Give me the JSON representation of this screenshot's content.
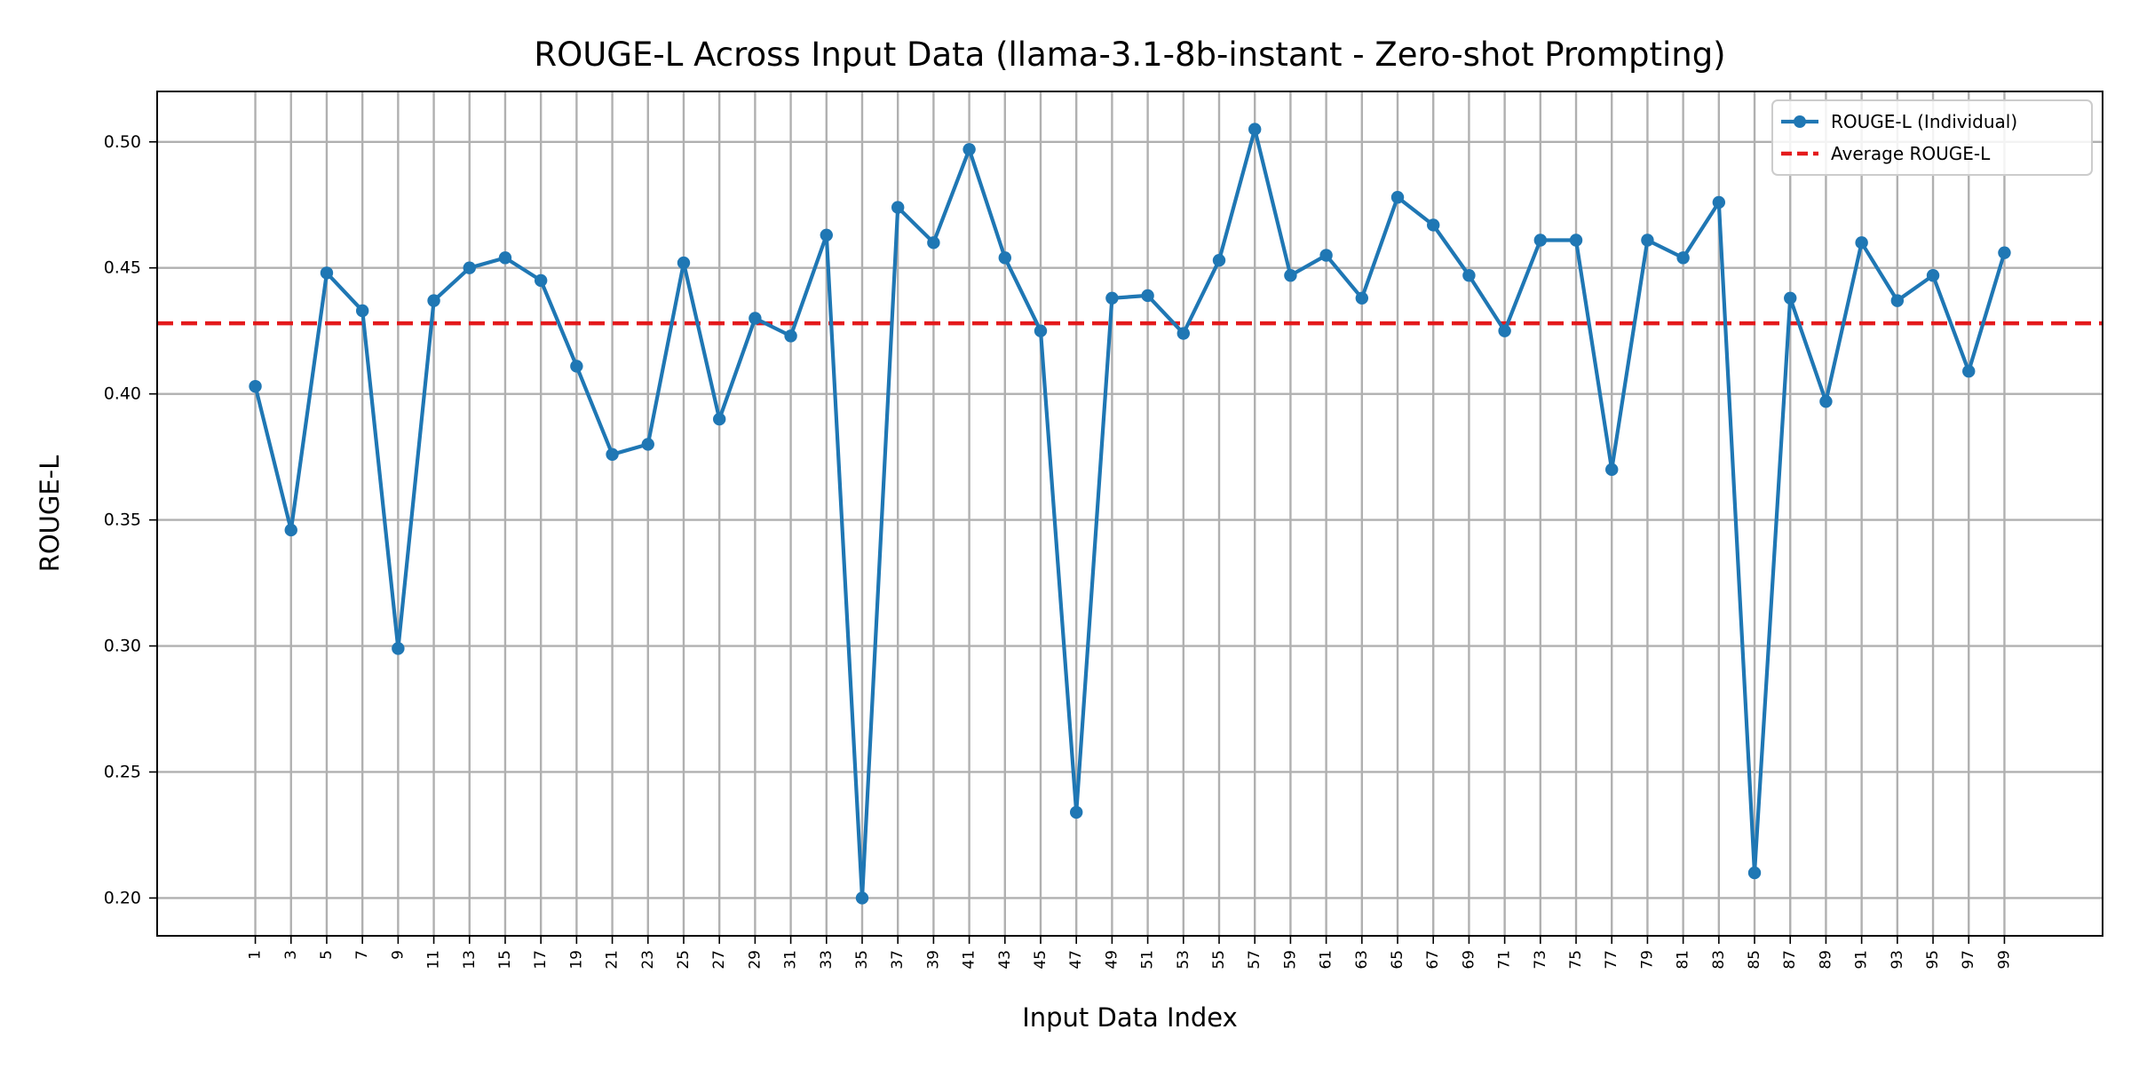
{
  "colors": {
    "series_line": "#1f77b4",
    "average_line": "#e41a1c",
    "grid": "#b0b0b0",
    "axes": "#000000",
    "background": "#ffffff"
  },
  "chart_data": {
    "type": "line",
    "title": "ROUGE-L Across Input Data (llama-3.1-8b-instant - Zero-shot Prompting)",
    "xlabel": "Input Data Index",
    "ylabel": "ROUGE-L",
    "xlim": [
      -4.5,
      104.5
    ],
    "ylim": [
      0.185,
      0.52
    ],
    "grid": true,
    "legend_position": "top-right",
    "x_ticks": [
      1,
      3,
      5,
      7,
      9,
      11,
      13,
      15,
      17,
      19,
      21,
      23,
      25,
      27,
      29,
      31,
      33,
      35,
      37,
      39,
      41,
      43,
      45,
      47,
      49,
      51,
      53,
      55,
      57,
      59,
      61,
      63,
      65,
      67,
      69,
      71,
      73,
      75,
      77,
      79,
      81,
      83,
      85,
      87,
      89,
      91,
      93,
      95,
      97,
      99
    ],
    "y_ticks": [
      0.2,
      0.25,
      0.3,
      0.35,
      0.4,
      0.45,
      0.5
    ],
    "y_tick_labels": [
      "0.20",
      "0.25",
      "0.30",
      "0.35",
      "0.40",
      "0.45",
      "0.50"
    ],
    "series": [
      {
        "name": "ROUGE-L (Individual)",
        "style": "line-with-markers",
        "x": [
          1,
          3,
          5,
          7,
          9,
          11,
          13,
          15,
          17,
          19,
          21,
          23,
          25,
          27,
          29,
          31,
          33,
          35,
          37,
          39,
          41,
          43,
          45,
          47,
          49,
          51,
          53,
          55,
          57,
          59,
          61,
          63,
          65,
          67,
          69,
          71,
          73,
          75,
          77,
          79,
          81,
          83,
          85,
          87,
          89,
          91,
          93,
          95,
          97,
          99
        ],
        "values": [
          0.403,
          0.346,
          0.448,
          0.433,
          0.299,
          0.437,
          0.45,
          0.454,
          0.445,
          0.411,
          0.376,
          0.38,
          0.452,
          0.39,
          0.43,
          0.423,
          0.463,
          0.2,
          0.474,
          0.46,
          0.497,
          0.454,
          0.425,
          0.234,
          0.438,
          0.439,
          0.424,
          0.453,
          0.505,
          0.447,
          0.455,
          0.438,
          0.478,
          0.467,
          0.447,
          0.425,
          0.461,
          0.461,
          0.37,
          0.461,
          0.454,
          0.476,
          0.21,
          0.438,
          0.397,
          0.46,
          0.437,
          0.447,
          0.409,
          0.456
        ]
      },
      {
        "name": "Average ROUGE-L",
        "style": "dashed-horizontal",
        "value": 0.428
      }
    ]
  }
}
